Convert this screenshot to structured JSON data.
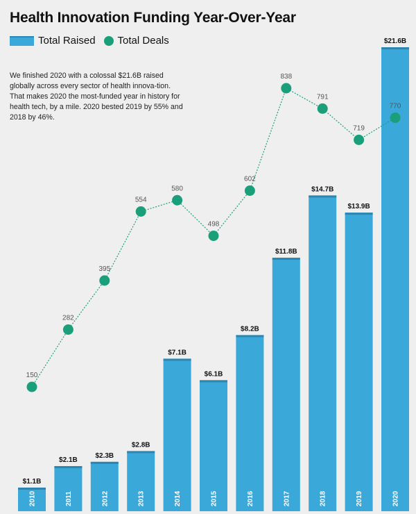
{
  "page": {
    "title": "Health Innovation Funding Year-Over-Year",
    "description": "We finished 2020 with a colossal $21.6B raised globally across every sector of health innova-tion. That makes 2020 the most-funded year in history for health tech, by a mile. 2020 bested 2019 by 55% and 2018 by 46%."
  },
  "legend": {
    "bars_label": "Total Raised",
    "dots_label": "Total Deals"
  },
  "colors": {
    "bar": "#3aa9d9",
    "bar_cap": "#2c86b0",
    "dot": "#1a9f7a",
    "line": "#1a9f7a"
  },
  "chart_data": {
    "type": "bar",
    "title": "Health Innovation Funding Year-Over-Year",
    "categories": [
      "2010",
      "2011",
      "2012",
      "2013",
      "2014",
      "2015",
      "2016",
      "2017",
      "2018",
      "2019",
      "2020"
    ],
    "series": [
      {
        "name": "Total Raised",
        "type": "bar",
        "values": [
          1.1,
          2.1,
          2.3,
          2.8,
          7.1,
          6.1,
          8.2,
          11.8,
          14.7,
          13.9,
          21.6
        ],
        "labels": [
          "$1.1B",
          "$2.1B",
          "$2.3B",
          "$2.8B",
          "$7.1B",
          "$6.1B",
          "$8.2B",
          "$11.8B",
          "$14.7B",
          "$13.9B",
          "$21.6B"
        ]
      },
      {
        "name": "Total Deals",
        "type": "line",
        "values": [
          150,
          282,
          395,
          554,
          580,
          498,
          602,
          838,
          791,
          719,
          770
        ],
        "labels": [
          "150",
          "282",
          "395",
          "554",
          "580",
          "498",
          "602",
          "838",
          "791",
          "719",
          "770"
        ]
      }
    ],
    "bar_ylim": [
      0,
      21.6
    ],
    "line_ylim": [
      150,
      838
    ],
    "legend_position": "top-left",
    "grid": false
  }
}
